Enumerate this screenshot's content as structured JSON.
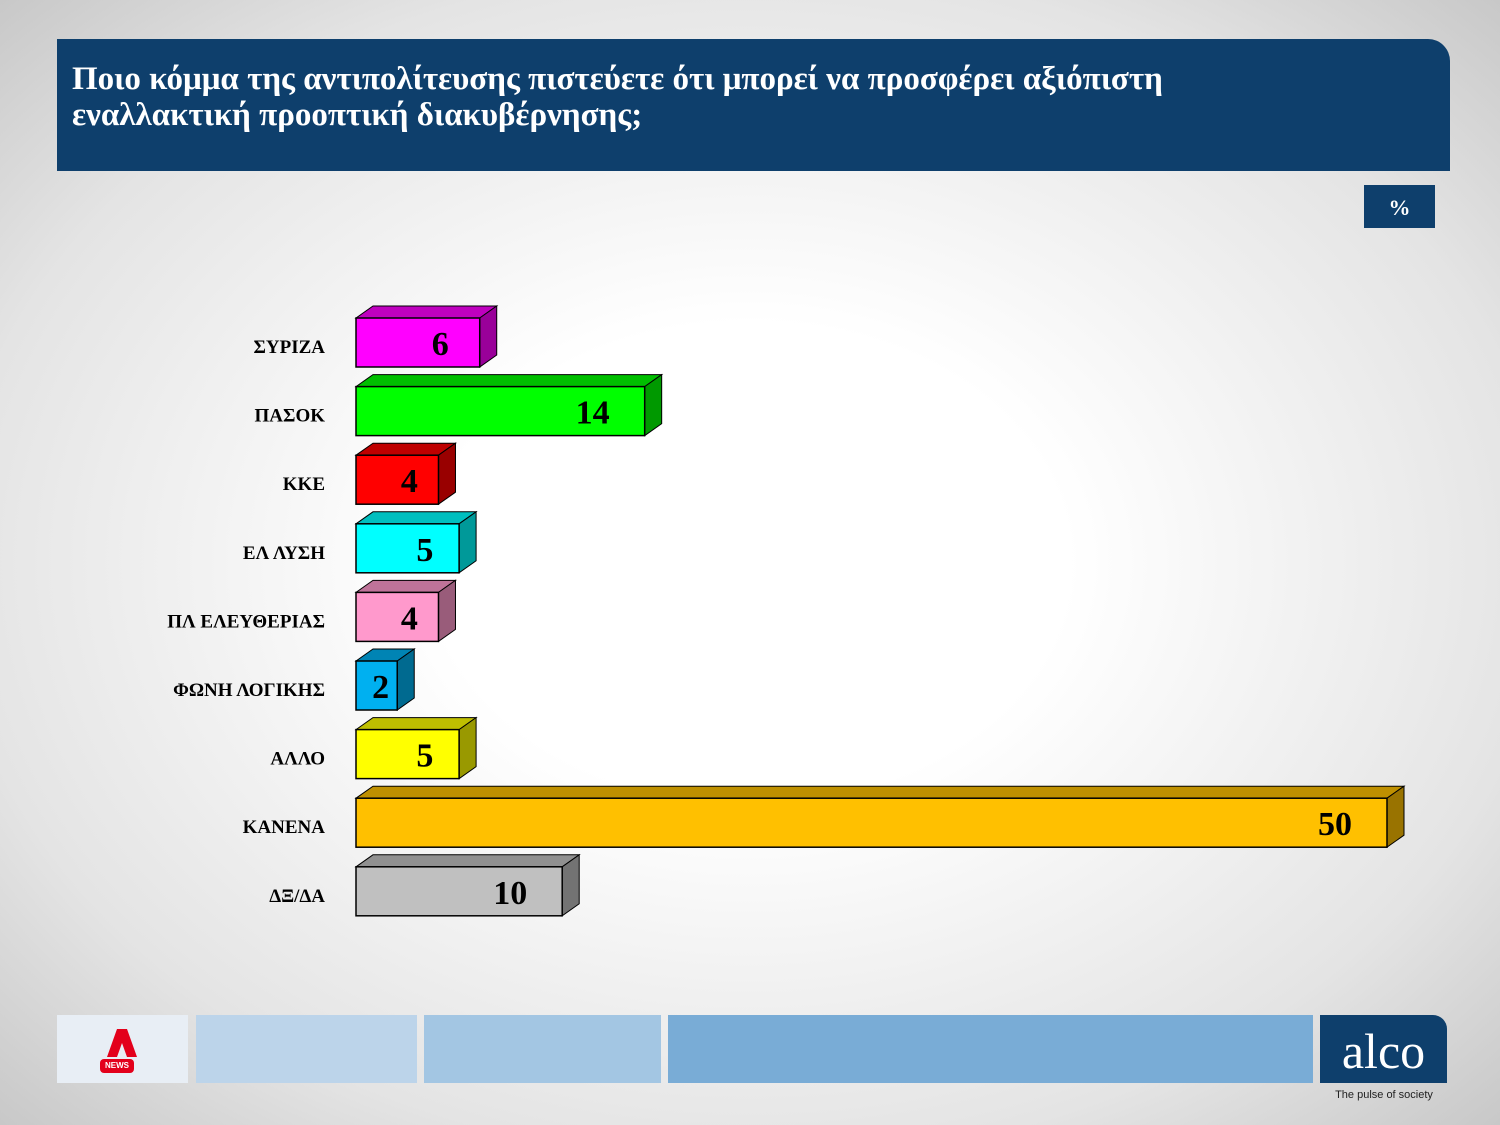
{
  "chart_data": {
    "type": "bar",
    "orientation": "horizontal",
    "title": "Ποιο κόμμα της αντιπολίτευσης πιστεύετε ότι μπορεί να προσφέρει αξιόπιστη εναλλακτική προοπτική διακυβέρνησης;",
    "unit_label": "%",
    "categories": [
      "ΣΥΡΙΖΑ",
      "ΠΑΣΟΚ",
      "ΚΚΕ",
      "ΕΛ ΛΥΣΗ",
      "ΠΛ ΕΛΕΥΘΕΡΙΑΣ",
      "ΦΩΝΗ ΛΟΓΙΚΗΣ",
      "ΑΛΛΟ",
      "ΚΑΝΕΝΑ",
      "ΔΞ/ΔΑ"
    ],
    "values": [
      6,
      14,
      4,
      5,
      4,
      2,
      5,
      50,
      10
    ],
    "colors": [
      "#ff00ff",
      "#00ff00",
      "#ff0000",
      "#00ffff",
      "#ff99cc",
      "#00b0f0",
      "#ffff00",
      "#ffc000",
      "#c0c0c0"
    ]
  },
  "footer": {
    "news_logo": "NEWS",
    "brand": "alco",
    "tagline": "The pulse of society"
  }
}
